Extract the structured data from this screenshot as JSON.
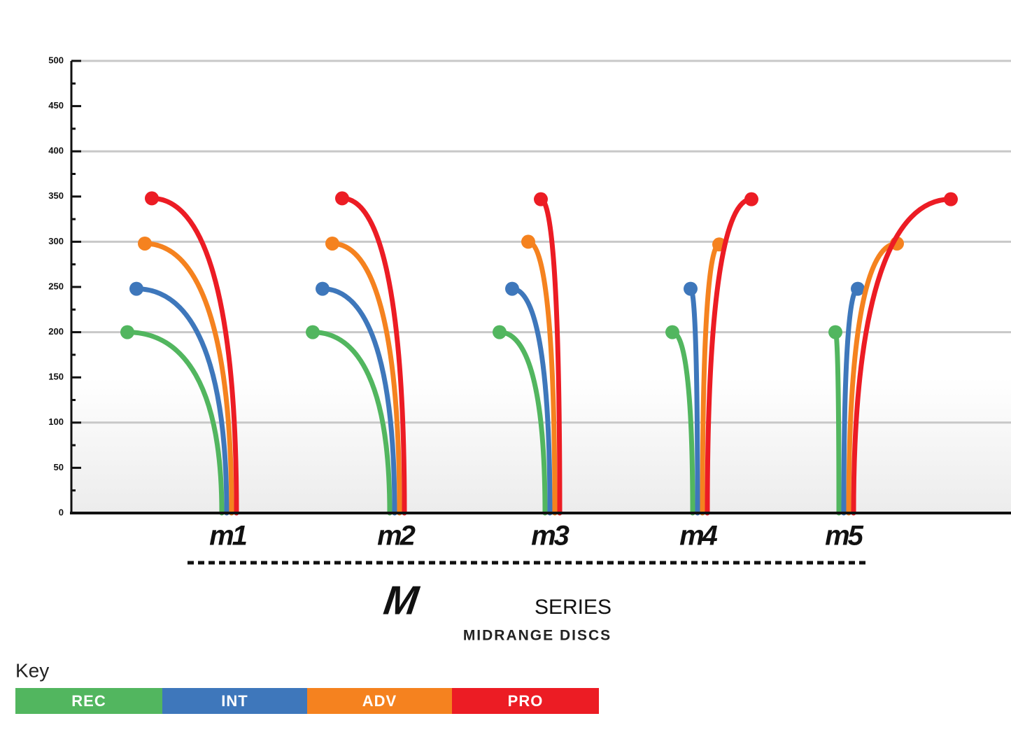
{
  "chart_data": {
    "type": "flight",
    "logo": "M",
    "title": "SERIES",
    "subtitle": "MIDRANGE DISCS",
    "legend_title": "Key",
    "categories": [
      "m1",
      "m2",
      "m3",
      "m4",
      "m5"
    ],
    "category_colors": [
      "#111111",
      "#111111",
      "#111111",
      "#7dc242",
      "#111111"
    ],
    "series": [
      {
        "name": "REC",
        "color": "#52b65f",
        "values": [
          200,
          200,
          200,
          200,
          200
        ]
      },
      {
        "name": "INT",
        "color": "#3e77bb",
        "values": [
          248,
          248,
          248,
          248,
          248
        ]
      },
      {
        "name": "ADV",
        "color": "#f5821f",
        "values": [
          298,
          298,
          300,
          297,
          298
        ]
      },
      {
        "name": "PRO",
        "color": "#ec1c24",
        "values": [
          348,
          348,
          347,
          347,
          347
        ]
      }
    ],
    "ylim": [
      0,
      500
    ],
    "yticks": [
      0,
      50,
      100,
      150,
      200,
      250,
      300,
      350,
      400,
      450,
      500
    ],
    "grid_ticks": [
      100,
      200,
      300,
      400,
      500
    ]
  }
}
